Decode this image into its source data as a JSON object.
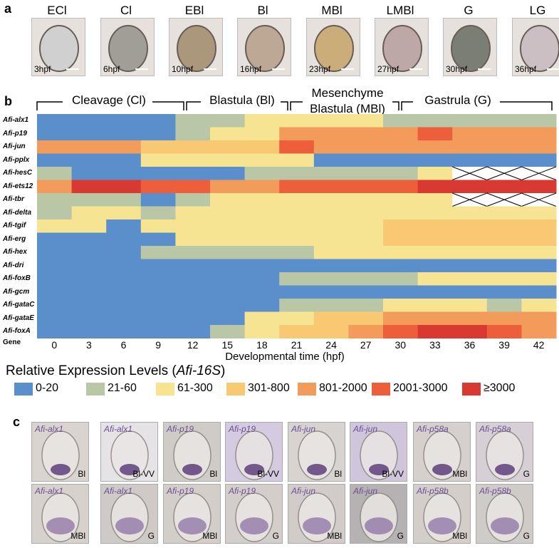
{
  "panel_letters": {
    "a": "a",
    "b": "b",
    "c": "c"
  },
  "stages_a": [
    {
      "label": "ECl",
      "hpf": "3hpf",
      "tone": "#cfcfcf"
    },
    {
      "label": "Cl",
      "hpf": "6hpf",
      "tone": "#9a9690"
    },
    {
      "label": "EBl",
      "hpf": "10hpf",
      "tone": "#a58f72"
    },
    {
      "label": "Bl",
      "hpf": "16hpf",
      "tone": "#b8a28e"
    },
    {
      "label": "MBl",
      "hpf": "23hpf",
      "tone": "#c7a86f"
    },
    {
      "label": "LMBl",
      "hpf": "27hpf",
      "tone": "#b9a2a1"
    },
    {
      "label": "G",
      "hpf": "30hpf",
      "tone": "#6f7468"
    },
    {
      "label": "LG",
      "hpf": "36hpf",
      "tone": "#c9bcc2"
    }
  ],
  "phases": [
    {
      "label": "Cleavage (Cl)"
    },
    {
      "label": "Blastula (Bl)"
    },
    {
      "label": "Mesenchyme Blastula (MBl)"
    },
    {
      "label": "Gastrula (G)"
    }
  ],
  "chart_data": {
    "type": "heatmap",
    "xlabel": "Developmental time (hpf)",
    "ylabel": "Gene",
    "x": [
      0,
      3,
      6,
      9,
      12,
      15,
      18,
      21,
      24,
      27,
      30,
      33,
      36,
      39,
      42
    ],
    "genes": [
      "Afi-alx1",
      "Afi-p19",
      "Afi-jun",
      "Afi-pplx",
      "Afi-hesC",
      "Afi-ets12",
      "Afi-tbr",
      "Afi-delta",
      "Afi-tgif",
      "Afi-erg",
      "Afi-hex",
      "Afi-dri",
      "Afi-foxB",
      "Afi-gcm",
      "Afi-gataC",
      "Afi-gataE",
      "Afi-foxA"
    ],
    "legend_title": "Relative Expression Levels (",
    "legend_title_italic": "Afi-16S",
    "legend_title_end": ")",
    "bins": [
      {
        "label": "0-20",
        "color": "#5b8fcb"
      },
      {
        "label": "21-60",
        "color": "#b9c7a6"
      },
      {
        "label": "61-300",
        "color": "#f7e493"
      },
      {
        "label": "301-800",
        "color": "#f8c872"
      },
      {
        "label": "801-2000",
        "color": "#f39b5a"
      },
      {
        "label": "2001-3000",
        "color": "#ec5f3a"
      },
      {
        "label": "≥3000",
        "color": "#d83a32"
      }
    ],
    "levels": [
      [
        0,
        0,
        0,
        0,
        1,
        1,
        2,
        2,
        2,
        2,
        1,
        1,
        1,
        1,
        1
      ],
      [
        0,
        0,
        0,
        0,
        1,
        2,
        2,
        4,
        4,
        4,
        4,
        5,
        4,
        4,
        4
      ],
      [
        4,
        4,
        4,
        3,
        3,
        3,
        3,
        5,
        4,
        4,
        4,
        4,
        4,
        4,
        4
      ],
      [
        0,
        0,
        0,
        2,
        2,
        2,
        2,
        2,
        0,
        0,
        0,
        0,
        0,
        0,
        0
      ],
      [
        1,
        0,
        0,
        0,
        0,
        0,
        1,
        1,
        1,
        1,
        1,
        2,
        -1,
        -1,
        -1
      ],
      [
        4,
        6,
        6,
        5,
        5,
        4,
        4,
        5,
        5,
        5,
        5,
        6,
        6,
        6,
        6
      ],
      [
        1,
        1,
        1,
        0,
        1,
        2,
        2,
        2,
        2,
        2,
        2,
        2,
        -1,
        -1,
        -1
      ],
      [
        1,
        2,
        2,
        1,
        2,
        2,
        2,
        2,
        2,
        2,
        2,
        2,
        2,
        2,
        2
      ],
      [
        2,
        2,
        0,
        2,
        2,
        2,
        2,
        2,
        2,
        2,
        3,
        3,
        3,
        3,
        3
      ],
      [
        0,
        0,
        0,
        0,
        2,
        2,
        2,
        2,
        2,
        2,
        3,
        3,
        3,
        3,
        3
      ],
      [
        0,
        0,
        0,
        1,
        1,
        1,
        1,
        1,
        2,
        2,
        2,
        2,
        2,
        2,
        2
      ],
      [
        0,
        0,
        0,
        0,
        0,
        0,
        0,
        0,
        0,
        0,
        0,
        0,
        0,
        0,
        0
      ],
      [
        0,
        0,
        0,
        0,
        0,
        0,
        0,
        1,
        1,
        1,
        1,
        2,
        2,
        2,
        2
      ],
      [
        0,
        0,
        0,
        0,
        0,
        0,
        0,
        0,
        0,
        0,
        0,
        0,
        0,
        0,
        0
      ],
      [
        0,
        0,
        0,
        0,
        0,
        0,
        0,
        1,
        1,
        1,
        2,
        2,
        2,
        1,
        2
      ],
      [
        0,
        0,
        0,
        0,
        0,
        0,
        2,
        2,
        3,
        3,
        4,
        4,
        4,
        4,
        4
      ],
      [
        0,
        0,
        0,
        0,
        0,
        1,
        2,
        3,
        3,
        4,
        5,
        6,
        6,
        5,
        4
      ]
    ],
    "missing_marker": "X"
  },
  "ish_panels": [
    {
      "gene": "Afi-alx1",
      "stage": "Bl",
      "tone": "#d9d4d0"
    },
    {
      "gene": "Afi-alx1",
      "stage": "Bl-VV",
      "tone": "#e6e3e6"
    },
    {
      "gene": "Afi-p19",
      "stage": "Bl",
      "tone": "#cfccc8"
    },
    {
      "gene": "Afi-p19",
      "stage": "Bl-VV",
      "tone": "#d4cbe0"
    },
    {
      "gene": "Afi-jun",
      "stage": "Bl",
      "tone": "#d7d3d0"
    },
    {
      "gene": "Afi-jun",
      "stage": "Bl-VV",
      "tone": "#d0c6dc"
    },
    {
      "gene": "Afi-p58a",
      "stage": "MBl",
      "tone": "#d5cfcd"
    },
    {
      "gene": "Afi-p58a",
      "stage": "G",
      "tone": "#d6cfd5"
    },
    {
      "gene": "Afi-alx1",
      "stage": "MBl",
      "tone": "#d6d1cd"
    },
    {
      "gene": "Afi-alx1",
      "stage": "G",
      "tone": "#cfcac7"
    },
    {
      "gene": "Afi-p19",
      "stage": "MBl",
      "tone": "#d3cec9"
    },
    {
      "gene": "Afi-p19",
      "stage": "G",
      "tone": "#d3cecc"
    },
    {
      "gene": "Afi-jun",
      "stage": "MBl",
      "tone": "#d1ccc9"
    },
    {
      "gene": "Afi-jun",
      "stage": "G",
      "tone": "#b6b2b3"
    },
    {
      "gene": "Afi-p58b",
      "stage": "MBl",
      "tone": "#d3ceca"
    },
    {
      "gene": "Afi-p58b",
      "stage": "G",
      "tone": "#cfcbc8"
    }
  ]
}
